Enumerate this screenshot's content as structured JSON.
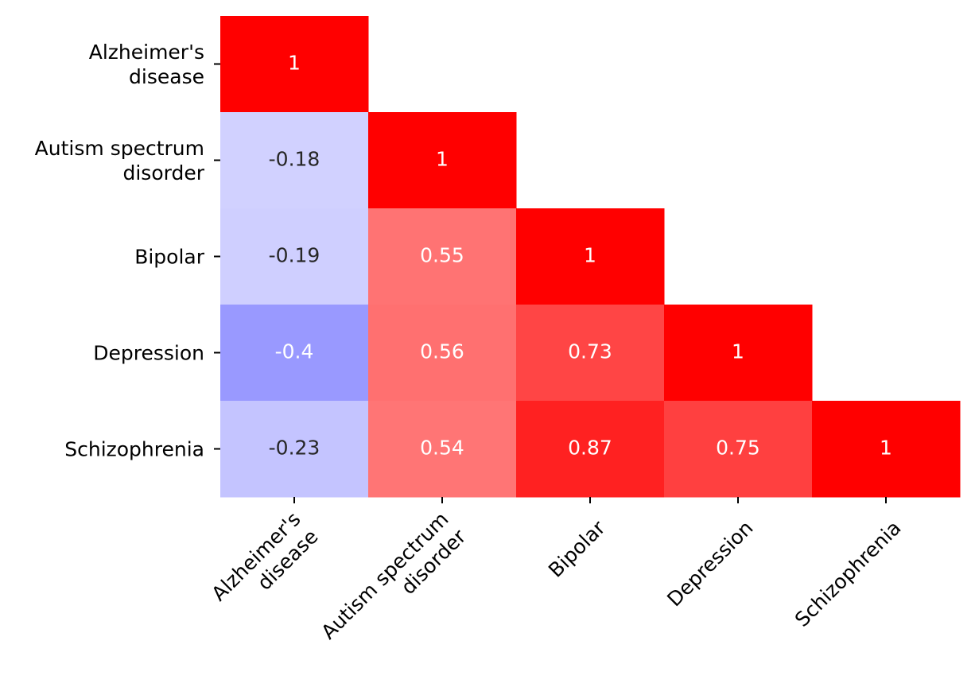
{
  "chart_data": {
    "type": "heatmap",
    "layout": "lower-triangle",
    "categories": [
      [
        "Alzheimer's",
        "disease"
      ],
      [
        "Autism spectrum",
        "disorder"
      ],
      [
        "Bipolar"
      ],
      [
        "Depression"
      ],
      [
        "Schizophrenia"
      ]
    ],
    "matrix": [
      [
        1,
        null,
        null,
        null,
        null
      ],
      [
        -0.18,
        1,
        null,
        null,
        null
      ],
      [
        -0.19,
        0.55,
        1,
        null,
        null
      ],
      [
        -0.4,
        0.56,
        0.73,
        1,
        null
      ],
      [
        -0.23,
        0.54,
        0.87,
        0.75,
        1
      ]
    ],
    "value_labels": [
      [
        "1",
        "",
        "",
        "",
        ""
      ],
      [
        "-0.18",
        "1",
        "",
        "",
        ""
      ],
      [
        "-0.19",
        "0.55",
        "1",
        "",
        ""
      ],
      [
        "-0.4",
        "0.56",
        "0.73",
        "1",
        ""
      ],
      [
        "-0.23",
        "0.54",
        "0.87",
        "0.75",
        "1"
      ]
    ],
    "color_scale": {
      "type": "diverging",
      "low": "#0000ff",
      "mid": "#ffffff",
      "high": "#ff0000",
      "vmin": -1,
      "vmax": 1
    },
    "colorbar": false,
    "title": "",
    "xlabel": "",
    "ylabel": "",
    "xtick_rotation_deg": 45
  }
}
